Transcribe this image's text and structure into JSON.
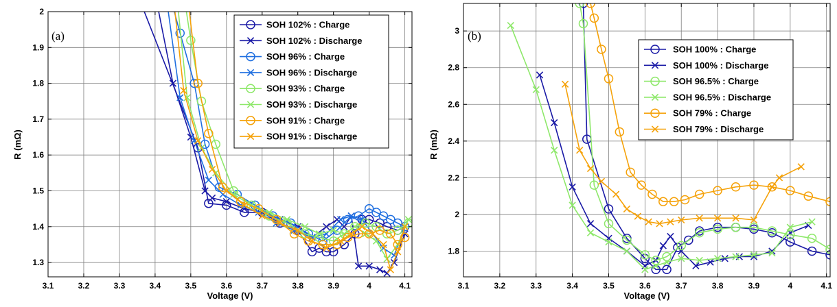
{
  "chart_data": [
    {
      "type": "line",
      "panel_label": "(a)",
      "xlabel": "Voltage (V)",
      "ylabel": "R (mΩ)",
      "xlim": [
        3.1,
        4.12
      ],
      "ylim": [
        1.26,
        2.0
      ],
      "xticks": [
        3.1,
        3.2,
        3.3,
        3.4,
        3.5,
        3.6,
        3.7,
        3.8,
        3.9,
        4.0,
        4.1
      ],
      "xtick_labels": [
        "3.1",
        "3.2",
        "3.3",
        "3.4",
        "3.5",
        "3.6",
        "3.7",
        "3.8",
        "3.9",
        "4",
        "4.1"
      ],
      "yticks": [
        1.3,
        1.4,
        1.5,
        1.6,
        1.7,
        1.8,
        1.9,
        2.0
      ],
      "ytick_labels": [
        "1.3",
        "1.4",
        "1.5",
        "1.6",
        "1.7",
        "1.8",
        "1.9",
        "2"
      ],
      "grid": true,
      "legend_position": "top-right",
      "series": [
        {
          "name": "SOH 102% : Charge",
          "color": "#1a1aa6",
          "marker": "o",
          "x": [
            3.35,
            3.52,
            3.55,
            3.6,
            3.65,
            3.7,
            3.75,
            3.8,
            3.84,
            3.86,
            3.88,
            3.9,
            3.93,
            3.96,
            3.98,
            4.0,
            4.03,
            4.05,
            4.08,
            4.1
          ],
          "y": [
            2.05,
            1.62,
            1.465,
            1.46,
            1.44,
            1.44,
            1.41,
            1.39,
            1.33,
            1.34,
            1.33,
            1.33,
            1.35,
            1.38,
            1.42,
            1.42,
            1.41,
            1.4,
            1.39,
            1.4
          ]
        },
        {
          "name": "SOH 102% : Discharge",
          "color": "#1a1aa6",
          "marker": "x",
          "x": [
            3.4,
            3.45,
            3.5,
            3.54,
            3.56,
            3.6,
            3.65,
            3.7,
            3.75,
            3.8,
            3.84,
            3.88,
            3.91,
            3.93,
            3.95,
            3.97,
            4.0,
            4.03,
            4.05,
            4.07,
            4.1
          ],
          "y": [
            2.05,
            1.8,
            1.65,
            1.5,
            1.48,
            1.47,
            1.45,
            1.44,
            1.42,
            1.4,
            1.37,
            1.4,
            1.42,
            1.4,
            1.43,
            1.29,
            1.29,
            1.28,
            1.27,
            1.3,
            1.38
          ]
        },
        {
          "name": "SOH 96% : Charge",
          "color": "#1f6fe0",
          "marker": "o",
          "x": [
            3.44,
            3.47,
            3.51,
            3.54,
            3.58,
            3.63,
            3.68,
            3.73,
            3.78,
            3.83,
            3.87,
            3.91,
            3.94,
            3.97,
            4.0,
            4.02,
            4.04,
            4.06,
            4.08,
            4.1
          ],
          "y": [
            2.05,
            1.94,
            1.8,
            1.63,
            1.51,
            1.49,
            1.46,
            1.43,
            1.41,
            1.38,
            1.36,
            1.39,
            1.42,
            1.43,
            1.45,
            1.44,
            1.43,
            1.42,
            1.41,
            1.4
          ]
        },
        {
          "name": "SOH 96% : Discharge",
          "color": "#1f6fe0",
          "marker": "x",
          "x": [
            3.43,
            3.47,
            3.51,
            3.55,
            3.59,
            3.64,
            3.69,
            3.74,
            3.79,
            3.84,
            3.88,
            3.92,
            3.95,
            3.98,
            4.01,
            4.04,
            4.07,
            4.1
          ],
          "y": [
            2.05,
            1.76,
            1.64,
            1.53,
            1.49,
            1.46,
            1.44,
            1.41,
            1.39,
            1.37,
            1.38,
            1.42,
            1.43,
            1.42,
            1.38,
            1.34,
            1.32,
            1.4
          ]
        },
        {
          "name": "SOH 93% : Charge",
          "color": "#8ee86a",
          "marker": "o",
          "x": [
            3.48,
            3.5,
            3.53,
            3.57,
            3.62,
            3.67,
            3.72,
            3.77,
            3.82,
            3.86,
            3.9,
            3.93,
            3.96,
            3.99,
            4.02,
            4.05,
            4.08,
            4.11
          ],
          "y": [
            2.05,
            1.92,
            1.75,
            1.63,
            1.5,
            1.46,
            1.43,
            1.41,
            1.38,
            1.37,
            1.36,
            1.38,
            1.4,
            1.41,
            1.4,
            1.38,
            1.39,
            1.41
          ]
        },
        {
          "name": "SOH 93% : Discharge",
          "color": "#8ee86a",
          "marker": "x",
          "x": [
            3.46,
            3.49,
            3.53,
            3.57,
            3.62,
            3.67,
            3.72,
            3.77,
            3.82,
            3.86,
            3.9,
            3.93,
            3.96,
            3.99,
            4.02,
            4.05,
            4.08,
            4.11
          ],
          "y": [
            2.05,
            1.76,
            1.62,
            1.55,
            1.49,
            1.46,
            1.44,
            1.42,
            1.4,
            1.38,
            1.39,
            1.38,
            1.4,
            1.38,
            1.36,
            1.31,
            1.35,
            1.42
          ]
        },
        {
          "name": "SOH 91% : Charge",
          "color": "#f5a20a",
          "marker": "o",
          "x": [
            3.49,
            3.52,
            3.55,
            3.59,
            3.64,
            3.69,
            3.74,
            3.79,
            3.83,
            3.87,
            3.91,
            3.94,
            3.97,
            4.0,
            4.03,
            4.06,
            4.08,
            4.1
          ],
          "y": [
            2.05,
            1.8,
            1.66,
            1.51,
            1.47,
            1.45,
            1.42,
            1.38,
            1.36,
            1.35,
            1.35,
            1.37,
            1.38,
            1.38,
            1.39,
            1.38,
            1.35,
            1.37
          ]
        },
        {
          "name": "SOH 91% : Discharge",
          "color": "#f5a20a",
          "marker": "x",
          "x": [
            3.45,
            3.48,
            3.52,
            3.56,
            3.6,
            3.65,
            3.7,
            3.75,
            3.8,
            3.84,
            3.88,
            3.92,
            3.95,
            3.98,
            4.01,
            4.04,
            4.06,
            4.08,
            4.1
          ],
          "y": [
            2.05,
            1.78,
            1.64,
            1.56,
            1.5,
            1.46,
            1.43,
            1.41,
            1.39,
            1.36,
            1.34,
            1.36,
            1.38,
            1.4,
            1.38,
            1.35,
            1.28,
            1.33,
            1.4
          ]
        }
      ]
    },
    {
      "type": "line",
      "panel_label": "(b)",
      "xlabel": "Voltage (V)",
      "ylabel": "R (mΩ)",
      "xlim": [
        3.1,
        4.11
      ],
      "ylim": [
        1.66,
        3.15
      ],
      "xticks": [
        3.1,
        3.2,
        3.3,
        3.4,
        3.5,
        3.6,
        3.7,
        3.8,
        3.9,
        4.0,
        4.1
      ],
      "xtick_labels": [
        "3.1",
        "3.2",
        "3.3",
        "3.4",
        "3.5",
        "3.6",
        "3.7",
        "3.8",
        "3.9",
        "4",
        "4.1"
      ],
      "yticks": [
        1.8,
        2.0,
        2.2,
        2.4,
        2.6,
        2.8,
        3.0
      ],
      "ytick_labels": [
        "1.8",
        "2",
        "2.2",
        "2.4",
        "2.6",
        "2.8",
        "3"
      ],
      "grid": true,
      "legend_position": "top-right",
      "series": [
        {
          "name": "SOH 100% : Charge",
          "color": "#1a1aa6",
          "marker": "o",
          "x": [
            3.43,
            3.44,
            3.5,
            3.55,
            3.6,
            3.63,
            3.66,
            3.69,
            3.72,
            3.75,
            3.8,
            3.85,
            3.9,
            3.95,
            4.0,
            4.06,
            4.11
          ],
          "y": [
            3.15,
            2.41,
            2.03,
            1.87,
            1.76,
            1.7,
            1.7,
            1.82,
            1.86,
            1.91,
            1.93,
            1.93,
            1.92,
            1.9,
            1.85,
            1.8,
            1.78
          ]
        },
        {
          "name": "SOH 100% : Discharge",
          "color": "#1a1aa6",
          "marker": "x",
          "x": [
            3.31,
            3.35,
            3.4,
            3.45,
            3.5,
            3.55,
            3.6,
            3.63,
            3.65,
            3.67,
            3.7,
            3.74,
            3.78,
            3.82,
            3.86,
            3.9,
            3.95,
            4.0,
            4.05
          ],
          "y": [
            2.76,
            2.5,
            2.15,
            1.95,
            1.87,
            1.8,
            1.72,
            1.75,
            1.83,
            1.88,
            1.8,
            1.72,
            1.74,
            1.76,
            1.77,
            1.77,
            1.8,
            1.9,
            1.94
          ]
        },
        {
          "name": "SOH 96.5% : Charge",
          "color": "#8ee86a",
          "marker": "o",
          "x": [
            3.42,
            3.43,
            3.46,
            3.5,
            3.55,
            3.6,
            3.63,
            3.66,
            3.7,
            3.75,
            3.8,
            3.85,
            3.9,
            3.95,
            4.0,
            4.06,
            4.11
          ],
          "y": [
            3.15,
            3.04,
            2.16,
            1.95,
            1.86,
            1.78,
            1.75,
            1.77,
            1.83,
            1.9,
            1.92,
            1.93,
            1.93,
            1.91,
            1.89,
            1.87,
            1.81
          ]
        },
        {
          "name": "SOH 96.5% : Discharge",
          "color": "#8ee86a",
          "marker": "x",
          "x": [
            3.23,
            3.3,
            3.35,
            3.4,
            3.45,
            3.5,
            3.55,
            3.6,
            3.63,
            3.66,
            3.7,
            3.75,
            3.8,
            3.85,
            3.9,
            3.95,
            4.0,
            4.06
          ],
          "y": [
            3.03,
            2.68,
            2.35,
            2.05,
            1.9,
            1.85,
            1.8,
            1.7,
            1.72,
            1.74,
            1.76,
            1.75,
            1.76,
            1.77,
            1.78,
            1.79,
            1.93,
            1.96
          ]
        },
        {
          "name": "SOH 79% : Charge",
          "color": "#f5a20a",
          "marker": "o",
          "x": [
            3.45,
            3.46,
            3.48,
            3.5,
            3.53,
            3.56,
            3.59,
            3.62,
            3.65,
            3.68,
            3.71,
            3.75,
            3.8,
            3.85,
            3.9,
            3.95,
            4.0,
            4.05,
            4.11
          ],
          "y": [
            3.15,
            3.07,
            2.9,
            2.74,
            2.45,
            2.23,
            2.16,
            2.11,
            2.07,
            2.07,
            2.08,
            2.11,
            2.13,
            2.15,
            2.16,
            2.15,
            2.13,
            2.1,
            2.07
          ]
        },
        {
          "name": "SOH 79% : Discharge",
          "color": "#f5a20a",
          "marker": "x",
          "x": [
            3.38,
            3.42,
            3.45,
            3.48,
            3.52,
            3.55,
            3.58,
            3.61,
            3.64,
            3.67,
            3.7,
            3.75,
            3.8,
            3.85,
            3.9,
            3.95,
            3.97,
            4.03
          ],
          "y": [
            2.71,
            2.35,
            2.25,
            2.18,
            2.11,
            2.03,
            1.99,
            1.96,
            1.95,
            1.96,
            1.97,
            1.98,
            1.98,
            1.98,
            1.97,
            2.15,
            2.2,
            2.26
          ]
        }
      ]
    }
  ]
}
